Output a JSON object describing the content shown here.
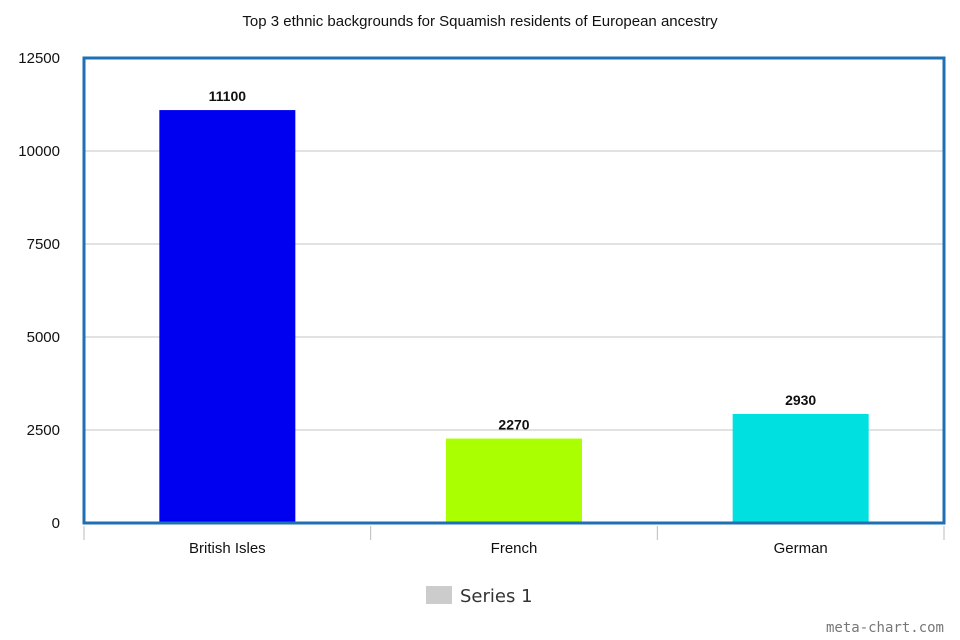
{
  "chart_data": {
    "type": "bar",
    "title": "Top 3 ethnic backgrounds for Squamish residents of European ancestry",
    "categories": [
      "British Isles",
      "French",
      "German"
    ],
    "series": [
      {
        "name": "Series 1",
        "values": [
          11100,
          2270,
          2930
        ]
      }
    ],
    "data_labels": [
      "11100",
      "2270",
      "2930"
    ],
    "bar_colors": [
      "#0000f0",
      "#aaff00",
      "#00e0e0"
    ],
    "xlabel": "",
    "ylabel": "",
    "ylim": [
      0,
      12500
    ],
    "yticks": [
      0,
      2500,
      5000,
      7500,
      10000,
      12500
    ],
    "ytick_labels": [
      "0",
      "2500",
      "5000",
      "7500",
      "10000",
      "12500"
    ],
    "grid": true,
    "legend": {
      "position": "bottom-center",
      "swatch_color": "#cccccc"
    },
    "frame_color": "#1f6fb5"
  },
  "watermark": "meta-chart.com"
}
